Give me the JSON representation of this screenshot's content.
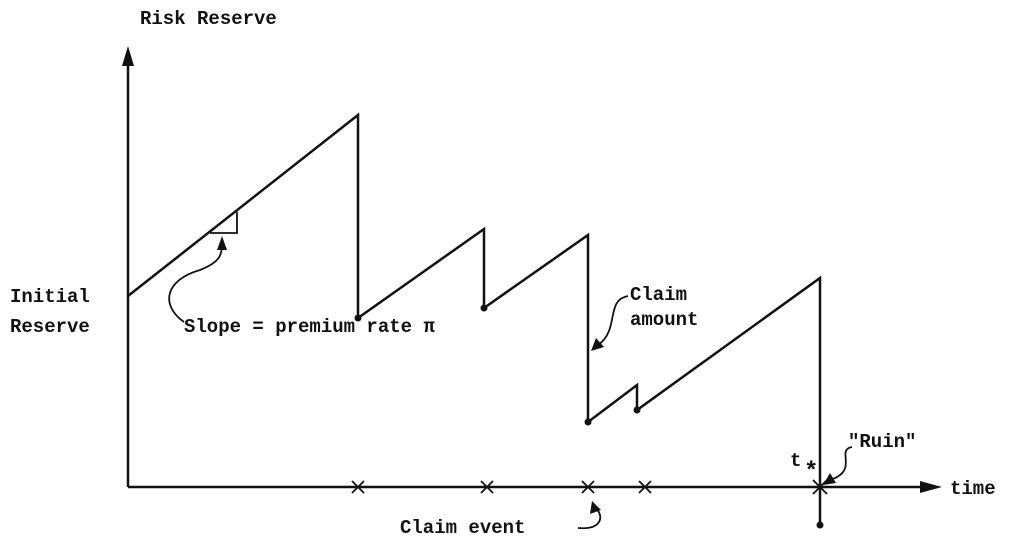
{
  "axes": {
    "y_label": "Risk Reserve",
    "x_label": "time"
  },
  "labels": {
    "initial": "Initial",
    "reserve": "Reserve",
    "slope": "Slope = premium rate  π",
    "claim": "Claim",
    "amount": "amount",
    "ruin": "\"Ruin\"",
    "t": "t",
    "star": "*",
    "claim_event": "Claim event"
  }
}
